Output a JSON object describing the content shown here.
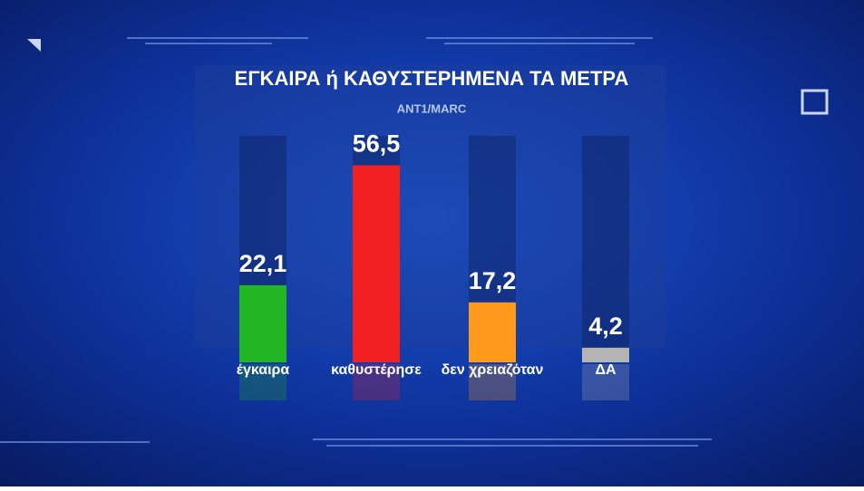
{
  "chart_data": {
    "type": "bar",
    "title": "ΕΓΚΑΙΡΑ ή ΚΑΘΥΣΤΕΡΗΜΕΝΑ ΤΑ ΜΕΤΡΑ",
    "subtitle": "ANT1/MARC",
    "categories": [
      "έγκαιρα",
      "καθυστέρησε",
      "δεν χρειαζόταν",
      "ΔΑ"
    ],
    "values": [
      22.1,
      56.5,
      17.2,
      4.2
    ],
    "value_labels": [
      "22,1",
      "56,5",
      "17,2",
      "4,2"
    ],
    "colors": [
      "#22b524",
      "#f22020",
      "#ff9a1c",
      "#b4b4b4"
    ]
  }
}
